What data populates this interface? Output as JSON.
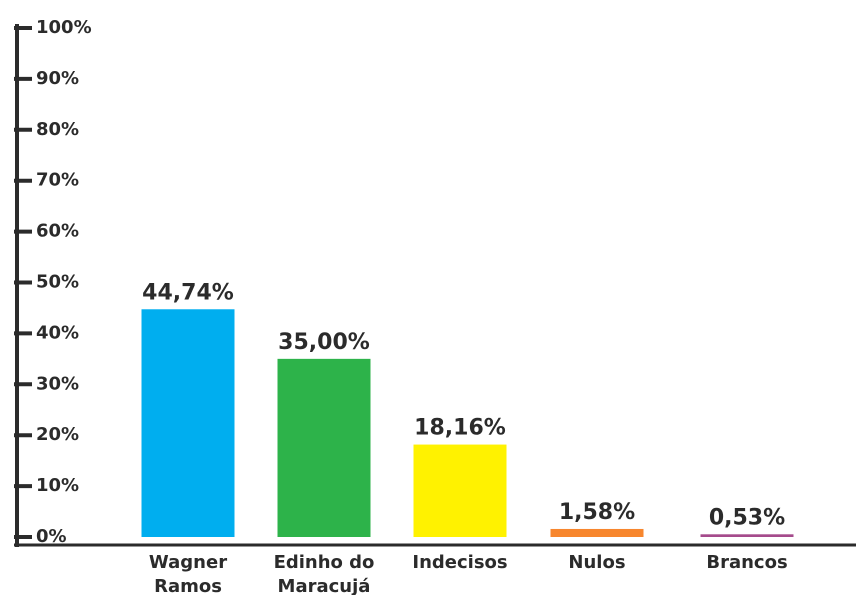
{
  "chart_data": {
    "type": "bar",
    "categories": [
      "Wagner Ramos",
      "Edinho do Maracujá",
      "Indecisos",
      "Nulos",
      "Brancos"
    ],
    "values": [
      44.74,
      35,
      18.16,
      1.58,
      0.53
    ],
    "value_labels": [
      "44,74%",
      "35,00%",
      "18,16%",
      "1,58%",
      "0,53%"
    ],
    "colors": [
      "#00aeef",
      "#2db34a",
      "#fff200",
      "#f7862e",
      "#a54b8c"
    ],
    "ylim": [
      0,
      100
    ],
    "yticks": [
      {
        "value": 0,
        "label": "0%"
      },
      {
        "value": 10,
        "label": "10%"
      },
      {
        "value": 20,
        "label": "20%"
      },
      {
        "value": 30,
        "label": "30%"
      },
      {
        "value": 40,
        "label": "40%"
      },
      {
        "value": 50,
        "label": "50%"
      },
      {
        "value": 60,
        "label": "60%"
      },
      {
        "value": 70,
        "label": "70%"
      },
      {
        "value": 80,
        "label": "80%"
      },
      {
        "value": 90,
        "label": "90%"
      },
      {
        "value": 100,
        "label": "100%"
      }
    ],
    "grid": false
  }
}
